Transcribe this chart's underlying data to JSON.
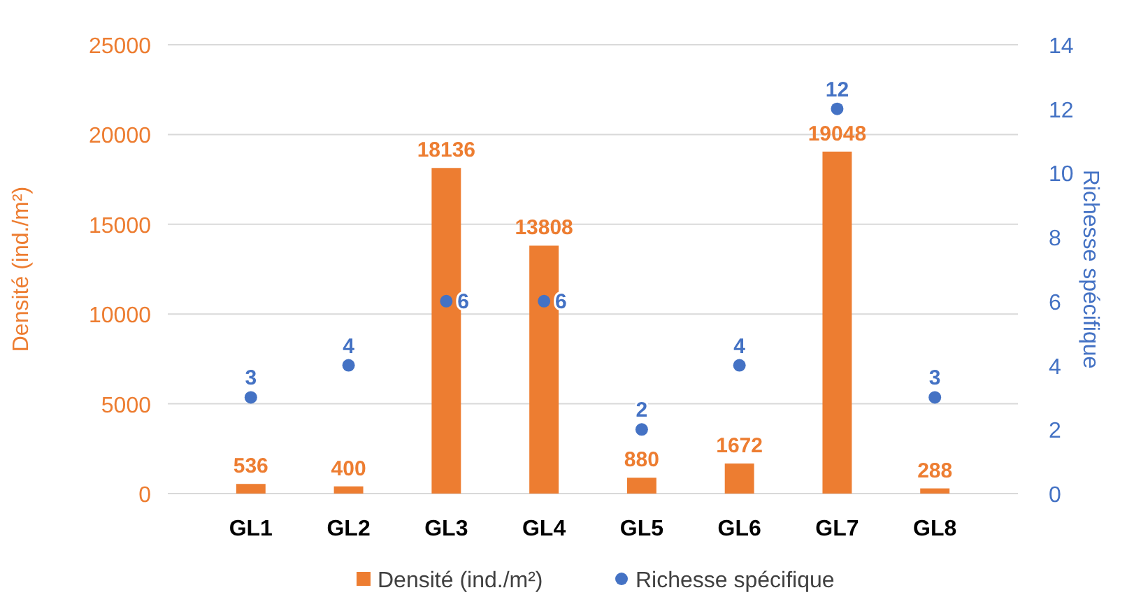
{
  "chart_data": {
    "type": "bar",
    "categories": [
      "GL1",
      "GL2",
      "GL3",
      "GL4",
      "GL5",
      "GL6",
      "GL7",
      "GL8"
    ],
    "ylabel": "Densité (ind./m²)",
    "y2label": "Richesse spécifique",
    "ylim": [
      0,
      25000
    ],
    "yticks": [
      0,
      5000,
      10000,
      15000,
      20000,
      25000
    ],
    "y2lim": [
      0,
      14
    ],
    "y2ticks": [
      0,
      2,
      4,
      6,
      8,
      10,
      12,
      14
    ],
    "grid": "y",
    "legend": "bottom",
    "data_labels": true,
    "series": [
      {
        "name": "Densité (ind./m²)",
        "color": "#ed7d31",
        "values": [
          536,
          400,
          18136,
          13808,
          880,
          1672,
          19048,
          288
        ]
      },
      {
        "name": "Richesse spécifique",
        "type": "scatter",
        "axis": "y2",
        "marker": "circle",
        "color": "#4472c4",
        "values": [
          3,
          4,
          6,
          6,
          2,
          4,
          12,
          3
        ]
      }
    ]
  }
}
